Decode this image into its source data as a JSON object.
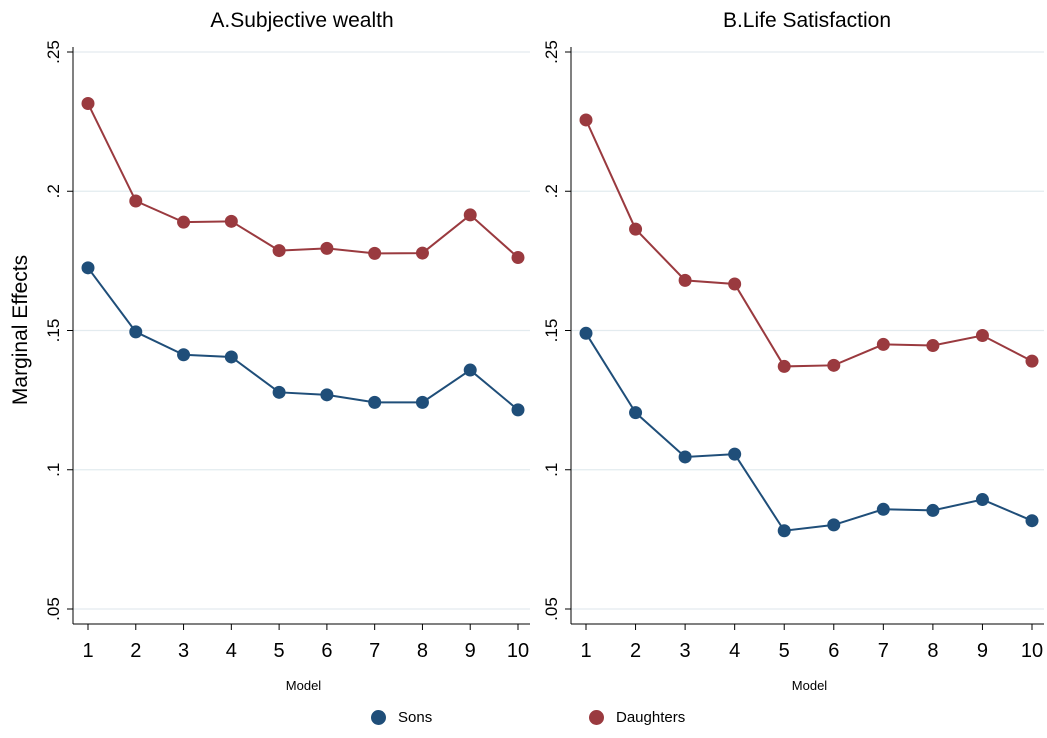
{
  "colors": {
    "sons": "#1F4E79",
    "daughters": "#9A3A3F",
    "grid": "#E3EBEF",
    "axis": "#000000"
  },
  "chart_data": [
    {
      "type": "line",
      "title": "A.Subjective wealth",
      "xlabel": "Model",
      "ylabel": "Marginal Effects",
      "x": [
        1,
        2,
        3,
        4,
        5,
        6,
        7,
        8,
        9,
        10
      ],
      "x_tick_labels": [
        "1",
        "2",
        "3",
        "4",
        "5",
        "6",
        "7",
        "8",
        "9",
        "10"
      ],
      "ylim": [
        0.05,
        0.25
      ],
      "y_ticks": [
        0.05,
        0.1,
        0.15,
        0.2,
        0.25
      ],
      "y_tick_labels": [
        ".05",
        ".1",
        ".15",
        ".2",
        ".25"
      ],
      "grid": true,
      "series": [
        {
          "name": "Sons",
          "values": [
            0.1725,
            0.1495,
            0.1413,
            0.1405,
            0.1278,
            0.1269,
            0.1242,
            0.1242,
            0.1358,
            0.1215
          ]
        },
        {
          "name": "Daughters",
          "values": [
            0.2315,
            0.1965,
            0.1889,
            0.1892,
            0.1787,
            0.1795,
            0.1777,
            0.1778,
            0.1915,
            0.1762
          ]
        }
      ]
    },
    {
      "type": "line",
      "title": "B.Life Satisfaction",
      "xlabel": "Model",
      "ylabel": "",
      "x": [
        1,
        2,
        3,
        4,
        5,
        6,
        7,
        8,
        9,
        10
      ],
      "x_tick_labels": [
        "1",
        "2",
        "3",
        "4",
        "5",
        "6",
        "7",
        "8",
        "9",
        "10"
      ],
      "ylim": [
        0.05,
        0.25
      ],
      "y_ticks": [
        0.05,
        0.1,
        0.15,
        0.2,
        0.25
      ],
      "y_tick_labels": [
        ".05",
        ".1",
        ".15",
        ".2",
        ".25"
      ],
      "grid": true,
      "series": [
        {
          "name": "Sons",
          "values": [
            0.149,
            0.1205,
            0.1046,
            0.1056,
            0.0781,
            0.0802,
            0.0858,
            0.0854,
            0.0893,
            0.0817
          ]
        },
        {
          "name": "Daughters",
          "values": [
            0.2256,
            0.1864,
            0.168,
            0.1667,
            0.1371,
            0.1375,
            0.145,
            0.1446,
            0.1482,
            0.139
          ]
        }
      ]
    }
  ],
  "legend": {
    "placement": "bottom",
    "items": [
      {
        "label": "Sons",
        "color": "#1F4E79"
      },
      {
        "label": "Daughters",
        "color": "#9A3A3F"
      }
    ]
  }
}
